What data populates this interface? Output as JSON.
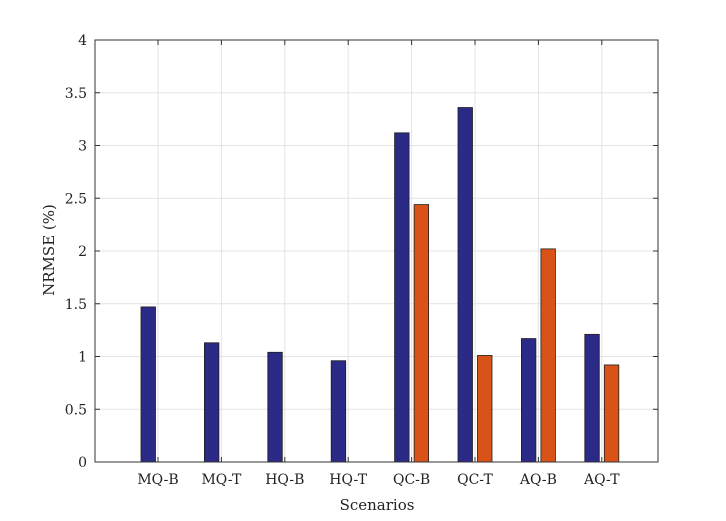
{
  "chart_data": {
    "type": "bar",
    "title": "",
    "xlabel": "Scenarios",
    "ylabel": "NRMSE (%)",
    "ylim": [
      0,
      4
    ],
    "yticks": [
      0,
      0.5,
      1,
      1.5,
      2,
      2.5,
      3,
      3.5,
      4
    ],
    "ytick_labels": [
      "0",
      "0.5",
      "1",
      "1.5",
      "2",
      "2.5",
      "3",
      "3.5",
      "4"
    ],
    "grid": true,
    "legend": "none",
    "categories": [
      "MQ-B",
      "MQ-T",
      "HQ-B",
      "HQ-T",
      "QC-B",
      "QC-T",
      "AQ-B",
      "AQ-T"
    ],
    "series": [
      {
        "color": "#2b2a86",
        "values": [
          1.47,
          1.13,
          1.04,
          0.96,
          3.12,
          3.36,
          1.17,
          1.21
        ]
      },
      {
        "color": "#d95319",
        "values": [
          0,
          0,
          0,
          0,
          2.44,
          1.01,
          2.02,
          0.92
        ]
      }
    ]
  }
}
